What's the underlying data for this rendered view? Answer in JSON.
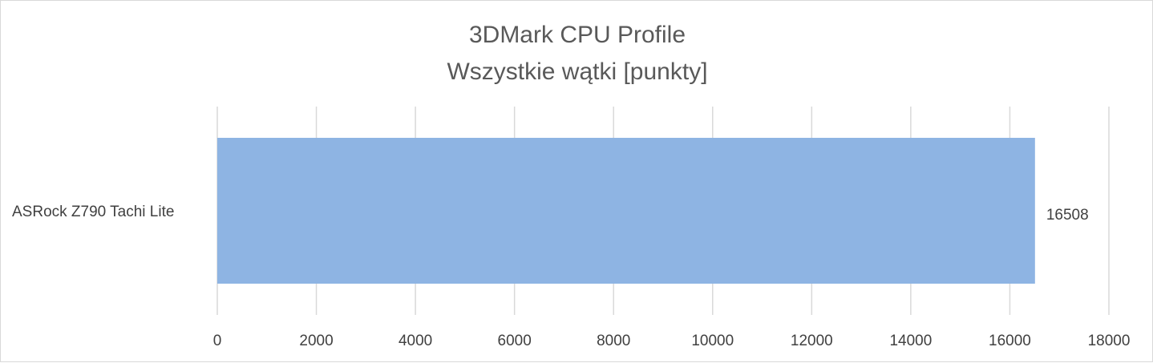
{
  "chart_data": {
    "type": "bar",
    "orientation": "horizontal",
    "title": "3DMark CPU Profile",
    "subtitle": "Wszystkie wątki [punkty]",
    "categories": [
      "ASRock Z790 Tachi Lite"
    ],
    "values": [
      16508
    ],
    "data_labels": [
      "16508"
    ],
    "xlim": [
      0,
      18000
    ],
    "x_ticks": [
      "0",
      "2000",
      "4000",
      "6000",
      "8000",
      "10000",
      "12000",
      "14000",
      "16000",
      "18000"
    ],
    "grid": true,
    "legend": "none",
    "colors": {
      "bar": "#8eb4e3",
      "grid": "#d9d9d9",
      "text": "#595959"
    }
  }
}
